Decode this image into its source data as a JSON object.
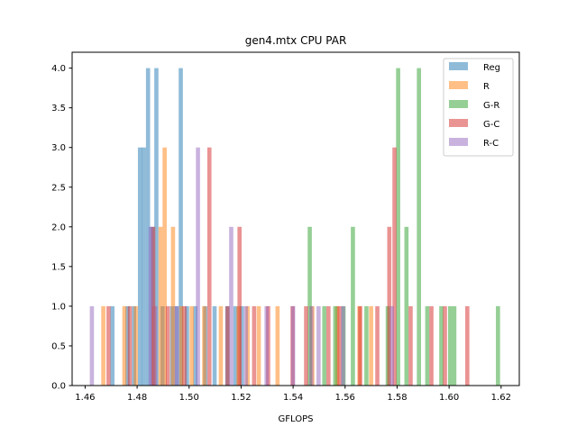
{
  "chart_data": {
    "type": "histogram",
    "title": "gen4.mtx CPU PAR",
    "xlabel": "GFLOPS",
    "ylabel": "",
    "xlim": [
      1.455,
      1.627
    ],
    "ylim": [
      0,
      4.2
    ],
    "xticks": [
      1.46,
      1.48,
      1.5,
      1.52,
      1.54,
      1.56,
      1.58,
      1.6,
      1.62
    ],
    "xtick_labels": [
      "1.46",
      "1.48",
      "1.50",
      "1.52",
      "1.54",
      "1.56",
      "1.58",
      "1.60",
      "1.62"
    ],
    "yticks": [
      0.0,
      0.5,
      1.0,
      1.5,
      2.0,
      2.5,
      3.0,
      3.5,
      4.0
    ],
    "ytick_labels": [
      "0.0",
      "0.5",
      "1.0",
      "1.5",
      "2.0",
      "2.5",
      "3.0",
      "3.5",
      "4.0"
    ],
    "bin_width": 0.0016,
    "bar_alpha": 0.5,
    "grid": false,
    "legend_position": "top-right",
    "series": [
      {
        "name": "Reg",
        "color": "#1f77b4",
        "bars": [
          {
            "x": 1.4705,
            "count": 1
          },
          {
            "x": 1.4763,
            "count": 1
          },
          {
            "x": 1.4788,
            "count": 1
          },
          {
            "x": 1.4811,
            "count": 3
          },
          {
            "x": 1.4826,
            "count": 3
          },
          {
            "x": 1.4842,
            "count": 4
          },
          {
            "x": 1.4858,
            "count": 2
          },
          {
            "x": 1.4874,
            "count": 4
          },
          {
            "x": 1.4898,
            "count": 1
          },
          {
            "x": 1.4935,
            "count": 1
          },
          {
            "x": 1.4952,
            "count": 1
          },
          {
            "x": 1.4968,
            "count": 4
          },
          {
            "x": 1.4992,
            "count": 1
          },
          {
            "x": 1.5024,
            "count": 1
          },
          {
            "x": 1.5062,
            "count": 1
          },
          {
            "x": 1.5098,
            "count": 1
          },
          {
            "x": 1.5147,
            "count": 1
          },
          {
            "x": 1.5178,
            "count": 1
          },
          {
            "x": 1.5202,
            "count": 1
          }
        ]
      },
      {
        "name": "R",
        "color": "#ff7f0e",
        "bars": [
          {
            "x": 1.467,
            "count": 1
          },
          {
            "x": 1.4751,
            "count": 1
          },
          {
            "x": 1.4795,
            "count": 1
          },
          {
            "x": 1.4865,
            "count": 1
          },
          {
            "x": 1.489,
            "count": 2
          },
          {
            "x": 1.4906,
            "count": 3
          },
          {
            "x": 1.4938,
            "count": 2
          },
          {
            "x": 1.497,
            "count": 1
          },
          {
            "x": 1.501,
            "count": 1
          },
          {
            "x": 1.5058,
            "count": 1
          },
          {
            "x": 1.5122,
            "count": 1
          },
          {
            "x": 1.519,
            "count": 1
          },
          {
            "x": 1.5225,
            "count": 1
          },
          {
            "x": 1.5268,
            "count": 1
          },
          {
            "x": 1.534,
            "count": 1
          },
          {
            "x": 1.5474,
            "count": 1
          },
          {
            "x": 1.557,
            "count": 1
          },
          {
            "x": 1.5655,
            "count": 1
          },
          {
            "x": 1.57,
            "count": 1
          }
        ]
      },
      {
        "name": "G-R",
        "color": "#2ca02c",
        "bars": [
          {
            "x": 1.5464,
            "count": 2
          },
          {
            "x": 1.552,
            "count": 1
          },
          {
            "x": 1.5562,
            "count": 1
          },
          {
            "x": 1.5594,
            "count": 1
          },
          {
            "x": 1.563,
            "count": 2
          },
          {
            "x": 1.5682,
            "count": 1
          },
          {
            "x": 1.5764,
            "count": 1
          },
          {
            "x": 1.5804,
            "count": 4
          },
          {
            "x": 1.5836,
            "count": 2
          },
          {
            "x": 1.5884,
            "count": 4
          },
          {
            "x": 1.5916,
            "count": 1
          },
          {
            "x": 1.597,
            "count": 1
          },
          {
            "x": 1.6004,
            "count": 1
          },
          {
            "x": 1.602,
            "count": 1
          },
          {
            "x": 1.6188,
            "count": 1
          }
        ]
      },
      {
        "name": "G-C",
        "color": "#d62728",
        "bars": [
          {
            "x": 1.469,
            "count": 1
          },
          {
            "x": 1.4772,
            "count": 1
          },
          {
            "x": 1.4862,
            "count": 2
          },
          {
            "x": 1.4918,
            "count": 1
          },
          {
            "x": 1.4982,
            "count": 1
          },
          {
            "x": 1.5078,
            "count": 3
          },
          {
            "x": 1.5148,
            "count": 1
          },
          {
            "x": 1.5194,
            "count": 2
          },
          {
            "x": 1.525,
            "count": 1
          },
          {
            "x": 1.5304,
            "count": 1
          },
          {
            "x": 1.5398,
            "count": 1
          },
          {
            "x": 1.545,
            "count": 1
          },
          {
            "x": 1.5536,
            "count": 1
          },
          {
            "x": 1.5578,
            "count": 1
          },
          {
            "x": 1.5658,
            "count": 1
          },
          {
            "x": 1.5724,
            "count": 1
          },
          {
            "x": 1.577,
            "count": 2
          },
          {
            "x": 1.579,
            "count": 3
          },
          {
            "x": 1.5852,
            "count": 1
          },
          {
            "x": 1.5932,
            "count": 1
          },
          {
            "x": 1.5984,
            "count": 1
          },
          {
            "x": 1.607,
            "count": 1
          }
        ]
      },
      {
        "name": "R-C",
        "color": "#9467bd",
        "bars": [
          {
            "x": 1.4626,
            "count": 1
          },
          {
            "x": 1.4852,
            "count": 2
          },
          {
            "x": 1.487,
            "count": 1
          },
          {
            "x": 1.4952,
            "count": 1
          },
          {
            "x": 1.5034,
            "count": 3
          },
          {
            "x": 1.5162,
            "count": 2
          },
          {
            "x": 1.5218,
            "count": 1
          },
          {
            "x": 1.5298,
            "count": 1
          },
          {
            "x": 1.54,
            "count": 1
          },
          {
            "x": 1.547,
            "count": 1
          },
          {
            "x": 1.5498,
            "count": 1
          },
          {
            "x": 1.5592,
            "count": 1
          },
          {
            "x": 1.578,
            "count": 1
          }
        ]
      }
    ]
  }
}
